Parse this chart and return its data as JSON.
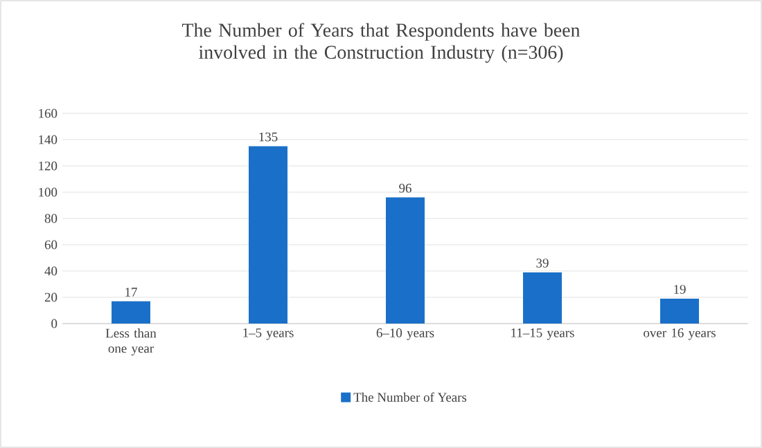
{
  "chart_data": {
    "type": "bar",
    "title": "The Number of Years that Respondents have been involved in the Construction Industry (n=306)",
    "categories": [
      "Less than one year",
      "1–5 years",
      "6–10 years",
      "11–15 years",
      "over 16 years"
    ],
    "series": [
      {
        "name": "The Number of Years",
        "color": "#1a70c8",
        "values": [
          17,
          135,
          96,
          39,
          19
        ]
      }
    ],
    "ylim": [
      0,
      160
    ],
    "yticks": [
      0,
      20,
      40,
      60,
      80,
      100,
      120,
      140,
      160
    ],
    "grid": "y",
    "legend": "bottom",
    "data_labels": true
  }
}
